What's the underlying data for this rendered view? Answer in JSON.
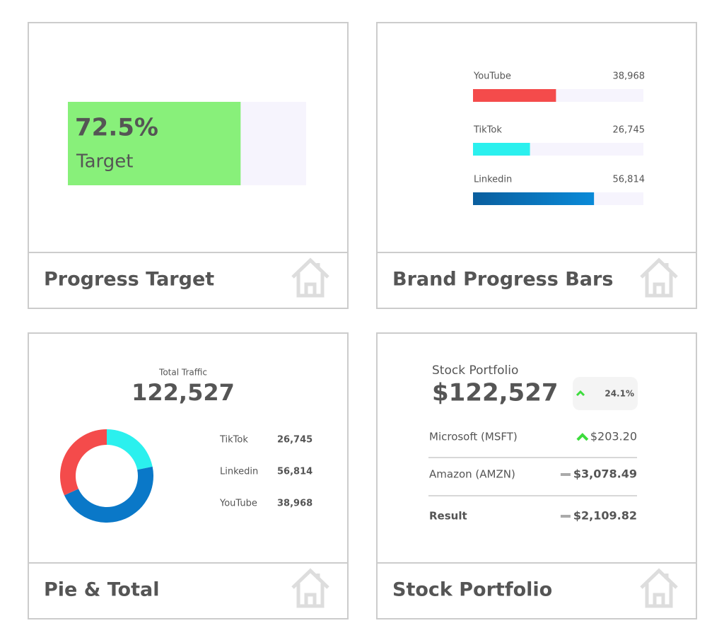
{
  "cards": [
    {
      "title": "Progress Target",
      "progress": {
        "value": {
          "value": 72.5,
          "label": "72.5%"
        },
        "label": "Target",
        "xlim": [
          0,
          100
        ],
        "color": "#88f07a"
      }
    },
    {
      "title": "Brand Progress Bars",
      "bars": {
        "xlim": [
          0,
          80000
        ],
        "items": [
          {
            "name": "YouTube",
            "value": {
              "value": 38968,
              "label": "38,968"
            },
            "color": "#f44b4b"
          },
          {
            "name": "TikTok",
            "value": {
              "value": 26745,
              "label": "26,745"
            },
            "color": "#2bf0ee"
          },
          {
            "name": "Linkedin",
            "value": {
              "value": 56814,
              "label": "56,814"
            },
            "color": "#0a78c8"
          }
        ]
      }
    },
    {
      "title": "Pie & Total",
      "total_label": "Total Traffic",
      "total": "122,527",
      "pie": {
        "items": [
          {
            "name": "TikTok",
            "value": {
              "value": 26745,
              "label": "26,745"
            },
            "color": "#2bf0ee"
          },
          {
            "name": "Linkedin",
            "value": {
              "value": 56814,
              "label": "56,814"
            },
            "color": "#0a78c8"
          },
          {
            "name": "YouTube",
            "value": {
              "value": 38968,
              "label": "38,968"
            },
            "color": "#f44b4b"
          }
        ]
      }
    },
    {
      "title": "Stock Portfolio",
      "header": "Stock Portfolio",
      "total": "$122,527",
      "change": {
        "trend": "up",
        "label": "24.1%"
      },
      "rows": [
        {
          "name": "Microsoft (MSFT)",
          "value": "$203.20",
          "trend": "up"
        },
        {
          "name": "Amazon (AMZN)",
          "value": "$3,078.49",
          "trend": "flat"
        },
        {
          "name": "Result",
          "value": "$2,109.82",
          "trend": "flat"
        }
      ]
    }
  ]
}
